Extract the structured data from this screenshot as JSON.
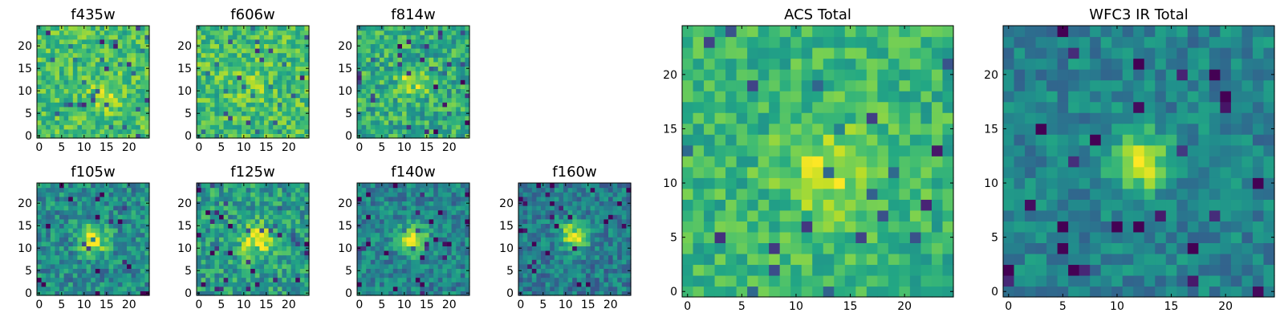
{
  "chart_data": [
    {
      "id": "f435w",
      "type": "heatmap",
      "title": "f435w",
      "xlim": [
        0,
        25
      ],
      "ylim": [
        0,
        25
      ],
      "xticks": [
        0,
        5,
        10,
        15,
        20
      ],
      "yticks": [
        0,
        5,
        10,
        15,
        20
      ],
      "xtick_labels": [
        "0",
        "5",
        "10",
        "15",
        "20"
      ],
      "ytick_labels": [
        "0",
        "5",
        "10",
        "15",
        "20"
      ],
      "colormap": "viridis",
      "gridsize": 25,
      "seed": 11,
      "peak": [
        15,
        9
      ],
      "sigma": 2.6,
      "amplitude": 0.2,
      "noise": 0.34,
      "base": 0.7
    },
    {
      "id": "f606w",
      "type": "heatmap",
      "title": "f606w",
      "xlim": [
        0,
        25
      ],
      "ylim": [
        0,
        25
      ],
      "xticks": [
        0,
        5,
        10,
        15,
        20
      ],
      "yticks": [
        0,
        5,
        10,
        15,
        20
      ],
      "xtick_labels": [
        "0",
        "5",
        "10",
        "15",
        "20"
      ],
      "ytick_labels": [
        "0",
        "5",
        "10",
        "15",
        "20"
      ],
      "colormap": "viridis",
      "gridsize": 25,
      "seed": 23,
      "peak": [
        12,
        12
      ],
      "sigma": 2.5,
      "amplitude": 0.1,
      "noise": 0.36,
      "base": 0.7
    },
    {
      "id": "f814w",
      "type": "heatmap",
      "title": "f814w",
      "xlim": [
        0,
        25
      ],
      "ylim": [
        0,
        25
      ],
      "xticks": [
        0,
        5,
        10,
        15,
        20
      ],
      "yticks": [
        0,
        5,
        10,
        15,
        20
      ],
      "xtick_labels": [
        "0",
        "5",
        "10",
        "15",
        "20"
      ],
      "ytick_labels": [
        "0",
        "5",
        "10",
        "15",
        "20"
      ],
      "colormap": "viridis",
      "gridsize": 25,
      "seed": 37,
      "peak": [
        12,
        12
      ],
      "sigma": 2.2,
      "amplitude": 0.3,
      "noise": 0.4,
      "base": 0.62
    },
    {
      "id": "f105w",
      "type": "heatmap",
      "title": "f105w",
      "xlim": [
        0,
        25
      ],
      "ylim": [
        0,
        25
      ],
      "xticks": [
        0,
        5,
        10,
        15,
        20
      ],
      "yticks": [
        0,
        5,
        10,
        15,
        20
      ],
      "xtick_labels": [
        "0",
        "5",
        "10",
        "15",
        "20"
      ],
      "ytick_labels": [
        "0",
        "5",
        "10",
        "15",
        "20"
      ],
      "colormap": "viridis",
      "gridsize": 25,
      "seed": 41,
      "peak": [
        12,
        12
      ],
      "sigma": 2.2,
      "amplitude": 0.5,
      "noise": 0.38,
      "base": 0.48
    },
    {
      "id": "f125w",
      "type": "heatmap",
      "title": "f125w",
      "xlim": [
        0,
        25
      ],
      "ylim": [
        0,
        25
      ],
      "xticks": [
        0,
        5,
        10,
        15,
        20
      ],
      "yticks": [
        0,
        5,
        10,
        15,
        20
      ],
      "xtick_labels": [
        "0",
        "5",
        "10",
        "15",
        "20"
      ],
      "ytick_labels": [
        "0",
        "5",
        "10",
        "15",
        "20"
      ],
      "colormap": "viridis",
      "gridsize": 25,
      "seed": 53,
      "peak": [
        13,
        12
      ],
      "sigma": 2.6,
      "amplitude": 0.45,
      "noise": 0.4,
      "base": 0.55
    },
    {
      "id": "f140w",
      "type": "heatmap",
      "title": "f140w",
      "xlim": [
        0,
        25
      ],
      "ylim": [
        0,
        25
      ],
      "xticks": [
        0,
        5,
        10,
        15,
        20
      ],
      "yticks": [
        0,
        5,
        10,
        15,
        20
      ],
      "xtick_labels": [
        "0",
        "5",
        "10",
        "15",
        "20"
      ],
      "ytick_labels": [
        "0",
        "5",
        "10",
        "15",
        "20"
      ],
      "colormap": "viridis",
      "gridsize": 25,
      "seed": 67,
      "peak": [
        12,
        12
      ],
      "sigma": 2.2,
      "amplitude": 0.55,
      "noise": 0.34,
      "base": 0.45
    },
    {
      "id": "f160w",
      "type": "heatmap",
      "title": "f160w",
      "xlim": [
        0,
        25
      ],
      "ylim": [
        0,
        25
      ],
      "xticks": [
        0,
        5,
        10,
        15,
        20
      ],
      "yticks": [
        0,
        5,
        10,
        15,
        20
      ],
      "xtick_labels": [
        "0",
        "5",
        "10",
        "15",
        "20"
      ],
      "ytick_labels": [
        "0",
        "5",
        "10",
        "15",
        "20"
      ],
      "colormap": "viridis",
      "gridsize": 25,
      "seed": 79,
      "peak": [
        12,
        13
      ],
      "sigma": 2.1,
      "amplitude": 0.6,
      "noise": 0.34,
      "base": 0.42
    },
    {
      "id": "acs_total",
      "type": "heatmap",
      "title": "ACS Total",
      "xlim": [
        0,
        25
      ],
      "ylim": [
        0,
        25
      ],
      "xticks": [
        0,
        5,
        10,
        15,
        20
      ],
      "yticks": [
        0,
        5,
        10,
        15,
        20
      ],
      "xtick_labels": [
        "0",
        "5",
        "10",
        "15",
        "20"
      ],
      "ytick_labels": [
        "0",
        "5",
        "10",
        "15",
        "20"
      ],
      "colormap": "viridis",
      "gridsize": 25,
      "seed": 97,
      "peak": [
        13,
        11
      ],
      "sigma": 3.0,
      "amplitude": 0.25,
      "noise": 0.3,
      "base": 0.66
    },
    {
      "id": "wfc3_ir_total",
      "type": "heatmap",
      "title": "WFC3 IR Total",
      "xlim": [
        0,
        25
      ],
      "ylim": [
        0,
        25
      ],
      "xticks": [
        0,
        5,
        10,
        15,
        20
      ],
      "yticks": [
        0,
        5,
        10,
        15,
        20
      ],
      "xtick_labels": [
        "0",
        "5",
        "10",
        "15",
        "20"
      ],
      "ytick_labels": [
        "0",
        "5",
        "10",
        "15",
        "20"
      ],
      "colormap": "viridis",
      "gridsize": 25,
      "seed": 131,
      "peak": [
        12,
        12
      ],
      "sigma": 1.9,
      "amplitude": 0.55,
      "noise": 0.28,
      "base": 0.45
    }
  ]
}
